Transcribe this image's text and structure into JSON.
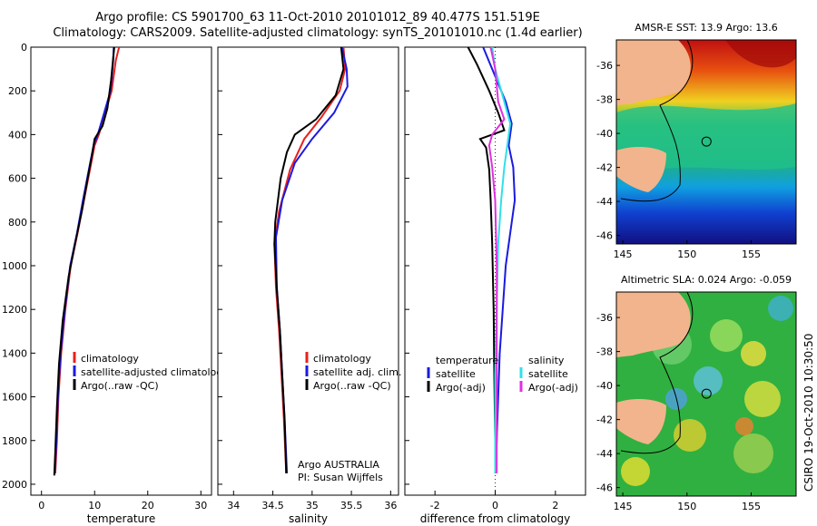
{
  "header": {
    "line1": "Argo profile: CS 5901700_63 11-Oct-2010 20101012_89 40.477S 151.519E",
    "line2": "Climatology: CARS2009. Satellite-adjusted climatology: synTS_20101010.nc (1.4d earlier)"
  },
  "footer_stamp": "CSIRO 19-Oct-2010 10:30:50",
  "colors": {
    "climatology": "#e8201e",
    "satellite": "#1a1ae0",
    "argo": "#000000",
    "sal_satellite": "#30e0e8",
    "sal_argo": "#e030e0",
    "land": "#f2b48c"
  },
  "chart_data": [
    {
      "type": "line",
      "id": "temperature",
      "xlabel": "temperature",
      "xlim": [
        -2,
        32
      ],
      "ylim": [
        0,
        2050
      ],
      "y_inverted": true,
      "xticks": [
        "0",
        "10",
        "20",
        "30"
      ],
      "yticks": [
        "0",
        "200",
        "400",
        "600",
        "800",
        "1000",
        "1200",
        "1400",
        "1600",
        "1800",
        "2000"
      ],
      "legend": [
        "climatology",
        "satellite-adjusted climatology",
        "Argo(..raw -QC)"
      ],
      "series": [
        {
          "name": "climatology",
          "color": "red",
          "points": [
            [
              14.6,
              0
            ],
            [
              14.0,
              60
            ],
            [
              13.2,
              200
            ],
            [
              12.0,
              300
            ],
            [
              10.8,
              400
            ],
            [
              10.0,
              450
            ],
            [
              9.2,
              550
            ],
            [
              8.0,
              700
            ],
            [
              6.8,
              850
            ],
            [
              5.5,
              1000
            ],
            [
              4.5,
              1200
            ],
            [
              3.7,
              1400
            ],
            [
              3.2,
              1600
            ],
            [
              2.9,
              1800
            ],
            [
              2.6,
              1950
            ]
          ]
        },
        {
          "name": "satellite-adjusted climatology",
          "color": "blue",
          "points": [
            [
              13.6,
              0
            ],
            [
              13.5,
              60
            ],
            [
              13.0,
              200
            ],
            [
              11.8,
              300
            ],
            [
              10.6,
              400
            ],
            [
              9.8,
              450
            ],
            [
              9.0,
              550
            ],
            [
              7.8,
              700
            ],
            [
              6.7,
              850
            ],
            [
              5.4,
              1000
            ],
            [
              4.4,
              1200
            ],
            [
              3.6,
              1400
            ],
            [
              3.1,
              1600
            ],
            [
              2.8,
              1800
            ],
            [
              2.5,
              1950
            ]
          ]
        },
        {
          "name": "Argo(..raw -QC)",
          "color": "black",
          "points": [
            [
              13.7,
              0
            ],
            [
              13.5,
              50
            ],
            [
              13.1,
              150
            ],
            [
              12.4,
              280
            ],
            [
              11.5,
              360
            ],
            [
              10.0,
              420
            ],
            [
              9.6,
              480
            ],
            [
              8.7,
              600
            ],
            [
              7.6,
              750
            ],
            [
              6.3,
              900
            ],
            [
              5.1,
              1050
            ],
            [
              4.0,
              1250
            ],
            [
              3.3,
              1450
            ],
            [
              2.9,
              1650
            ],
            [
              2.6,
              1850
            ],
            [
              2.4,
              1960
            ]
          ]
        }
      ]
    },
    {
      "type": "line",
      "id": "salinity",
      "xlabel": "salinity",
      "xlim": [
        33.8,
        36.1
      ],
      "ylim": [
        0,
        2050
      ],
      "y_inverted": true,
      "xticks": [
        "34",
        "34.5",
        "35",
        "35.5",
        "36"
      ],
      "legend": [
        "climatology",
        "satellite adj. clim.",
        "Argo(..raw -QC)"
      ],
      "annotation": [
        "Argo AUSTRALIA",
        "PI: Susan Wijffels"
      ],
      "series": [
        {
          "name": "climatology",
          "color": "red",
          "points": [
            [
              35.4,
              0
            ],
            [
              35.42,
              100
            ],
            [
              35.35,
              200
            ],
            [
              35.12,
              320
            ],
            [
              34.9,
              420
            ],
            [
              34.72,
              560
            ],
            [
              34.58,
              750
            ],
            [
              34.52,
              900
            ],
            [
              34.54,
              1100
            ],
            [
              34.58,
              1300
            ],
            [
              34.61,
              1500
            ],
            [
              34.64,
              1700
            ],
            [
              34.67,
              1950
            ]
          ]
        },
        {
          "name": "satellite adj. clim.",
          "color": "blue",
          "points": [
            [
              35.38,
              0
            ],
            [
              35.44,
              100
            ],
            [
              35.45,
              180
            ],
            [
              35.28,
              300
            ],
            [
              35.0,
              420
            ],
            [
              34.78,
              530
            ],
            [
              34.62,
              700
            ],
            [
              34.54,
              870
            ],
            [
              34.55,
              1100
            ],
            [
              34.59,
              1300
            ],
            [
              34.62,
              1500
            ],
            [
              34.65,
              1700
            ],
            [
              34.68,
              1950
            ]
          ]
        },
        {
          "name": "Argo(..raw -QC)",
          "color": "black",
          "points": [
            [
              35.37,
              0
            ],
            [
              35.4,
              100
            ],
            [
              35.3,
              220
            ],
            [
              35.05,
              330
            ],
            [
              34.78,
              400
            ],
            [
              34.68,
              480
            ],
            [
              34.6,
              600
            ],
            [
              34.53,
              800
            ],
            [
              34.52,
              900
            ],
            [
              34.55,
              1100
            ],
            [
              34.59,
              1300
            ],
            [
              34.62,
              1500
            ],
            [
              34.65,
              1700
            ],
            [
              34.67,
              1950
            ]
          ]
        }
      ]
    },
    {
      "type": "line",
      "id": "difference",
      "xlabel": "difference from climatology",
      "xlim": [
        -3,
        3
      ],
      "ylim": [
        0,
        2050
      ],
      "y_inverted": true,
      "xticks": [
        "-2",
        "0",
        "2"
      ],
      "legend_left_title": "temperature",
      "legend_left": [
        "satellite",
        "Argo(-adj)"
      ],
      "legend_right_title": "salinity",
      "legend_right": [
        "satellite",
        "Argo(-adj)"
      ],
      "series": [
        {
          "name": "temperature satellite",
          "color": "blue",
          "points": [
            [
              -0.4,
              0
            ],
            [
              -0.1,
              100
            ],
            [
              0.35,
              250
            ],
            [
              0.55,
              350
            ],
            [
              0.45,
              450
            ],
            [
              0.6,
              550
            ],
            [
              0.65,
              700
            ],
            [
              0.5,
              850
            ],
            [
              0.35,
              1000
            ],
            [
              0.25,
              1200
            ],
            [
              0.15,
              1400
            ],
            [
              0.1,
              1600
            ],
            [
              0.05,
              1800
            ],
            [
              0.0,
              1950
            ]
          ]
        },
        {
          "name": "temperature Argo(-adj)",
          "color": "black",
          "points": [
            [
              -0.9,
              0
            ],
            [
              -0.6,
              80
            ],
            [
              -0.2,
              200
            ],
            [
              0.1,
              300
            ],
            [
              0.3,
              380
            ],
            [
              -0.5,
              420
            ],
            [
              -0.3,
              460
            ],
            [
              -0.2,
              560
            ],
            [
              -0.15,
              700
            ],
            [
              -0.1,
              900
            ],
            [
              -0.05,
              1200
            ],
            [
              -0.03,
              1500
            ],
            [
              0.0,
              1800
            ],
            [
              0.0,
              1950
            ]
          ]
        },
        {
          "name": "salinity satellite",
          "color": "cyan",
          "points": [
            [
              -0.1,
              0
            ],
            [
              0.0,
              100
            ],
            [
              0.3,
              250
            ],
            [
              0.5,
              350
            ],
            [
              0.4,
              450
            ],
            [
              0.3,
              550
            ],
            [
              0.2,
              700
            ],
            [
              0.1,
              900
            ],
            [
              0.05,
              1200
            ],
            [
              0.0,
              1500
            ],
            [
              0.0,
              1950
            ]
          ]
        },
        {
          "name": "salinity Argo(-adj)",
          "color": "magenta",
          "points": [
            [
              -0.15,
              0
            ],
            [
              0.0,
              100
            ],
            [
              0.1,
              250
            ],
            [
              0.3,
              330
            ],
            [
              -0.1,
              400
            ],
            [
              -0.2,
              450
            ],
            [
              -0.1,
              550
            ],
            [
              0.0,
              700
            ],
            [
              0.05,
              1000
            ],
            [
              0.05,
              1500
            ],
            [
              0.05,
              1950
            ]
          ]
        }
      ]
    },
    {
      "type": "heatmap",
      "id": "sst_map",
      "title": "AMSR-E SST: 13.9 Argo: 13.6",
      "xlim": [
        144.5,
        158.5
      ],
      "ylim": [
        -46.5,
        -34.5
      ],
      "xticks": [
        "145",
        "150",
        "155"
      ],
      "yticks": [
        "-36",
        "-38",
        "-40",
        "-42",
        "-44",
        "-46"
      ],
      "argo_position": {
        "lon": 151.519,
        "lat": -40.477
      }
    },
    {
      "type": "heatmap",
      "id": "sla_map",
      "title": "Altimetric SLA: 0.024 Argo: -0.059",
      "xlim": [
        144.5,
        158.5
      ],
      "ylim": [
        -46.5,
        -34.5
      ],
      "xticks": [
        "145",
        "150",
        "155"
      ],
      "yticks": [
        "-36",
        "-38",
        "-40",
        "-42",
        "-44",
        "-46"
      ],
      "argo_position": {
        "lon": 151.519,
        "lat": -40.477
      }
    }
  ]
}
